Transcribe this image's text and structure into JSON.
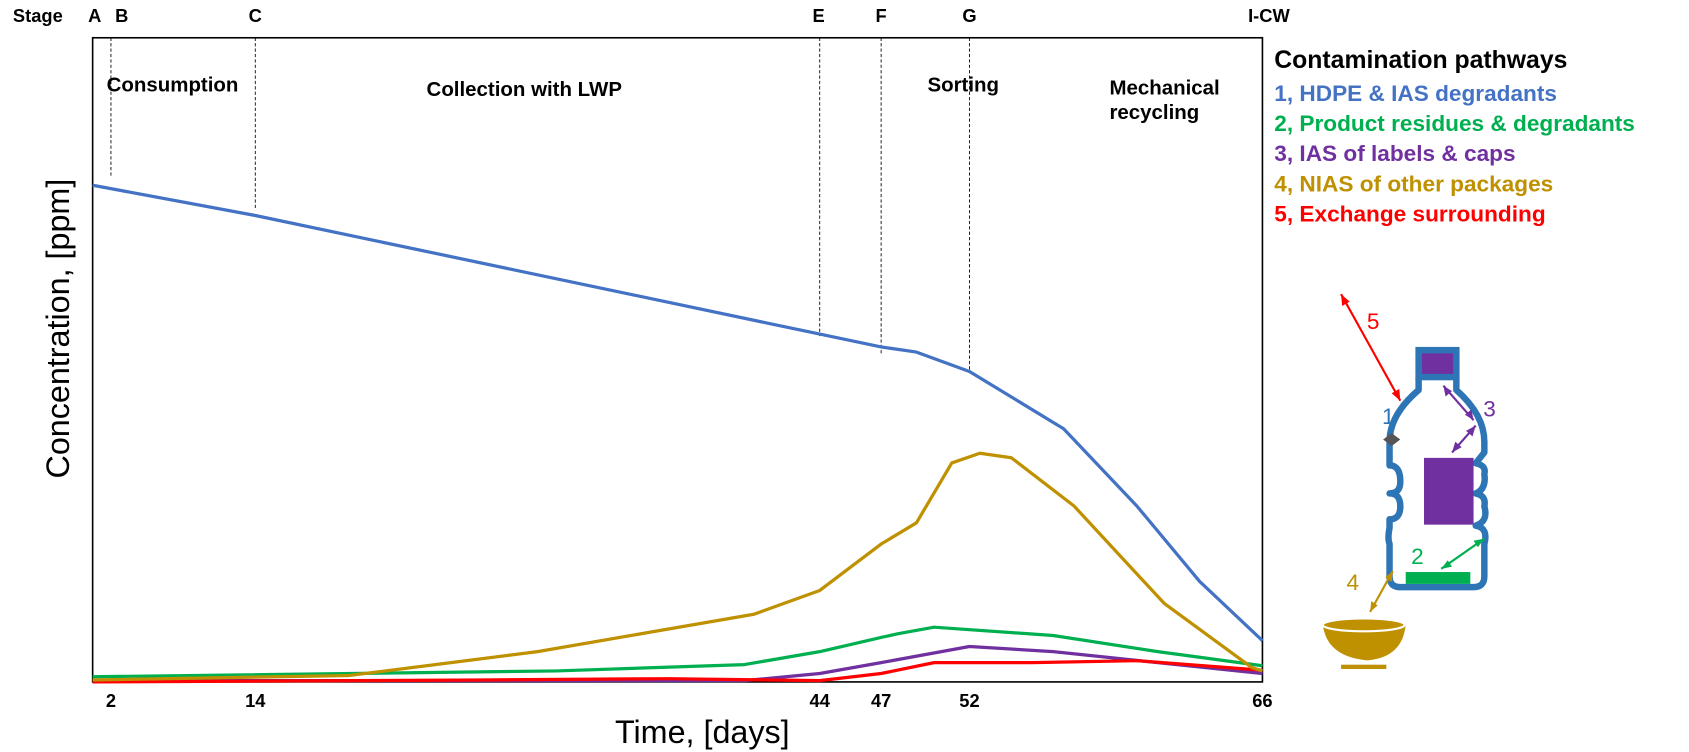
{
  "chart_data": {
    "type": "line",
    "stage_label": "Stage",
    "stages": [
      "A",
      "B",
      "C",
      "E",
      "F",
      "G",
      "I-CW"
    ],
    "phases": [
      "Consumption",
      "Collection with LWP",
      "Sorting",
      "Mechanical recycling"
    ],
    "x_label": "Time, [days]",
    "y_label": "Concentration, [ppm]",
    "xlim": [
      0,
      66
    ],
    "xticks": [
      2,
      14,
      44,
      47,
      52,
      66
    ],
    "ylim": [
      0,
      100
    ],
    "legend_title": "Contamination pathways",
    "series": [
      {
        "name": "1, HDPE & IAS degradants",
        "color": "#4472c4",
        "x": [
          0,
          14,
          44,
          47,
          49,
          52,
          56.5,
          60,
          63,
          66
        ],
        "values": [
          77.1,
          72.4,
          54,
          52,
          51.2,
          48.2,
          39.3,
          27.3,
          15.6,
          6.4
        ]
      },
      {
        "name": "2, Product residues & degradants",
        "color": "#00b050",
        "x": [
          0,
          30,
          40,
          44,
          47,
          48,
          50,
          56,
          61,
          66
        ],
        "values": [
          0.8,
          1.7,
          2.7,
          4.7,
          6.9,
          7.5,
          8.5,
          7.2,
          4.7,
          2.5
        ]
      },
      {
        "name": "3, IAS of labels & caps",
        "color": "#7030a0",
        "x": [
          0,
          40,
          44,
          47,
          52,
          56,
          61,
          66
        ],
        "values": [
          0.2,
          0.2,
          1.3,
          3.0,
          5.5,
          4.7,
          3.0,
          1.3
        ]
      },
      {
        "name": "4, NIAS of other packages",
        "color": "#bf9000",
        "x": [
          0,
          19,
          29,
          40.5,
          44,
          47,
          49,
          51,
          52.5,
          54,
          57,
          61.3,
          65.5,
          66
        ],
        "values": [
          0.3,
          1.0,
          4.7,
          10.5,
          14.2,
          21.4,
          24.7,
          34,
          35.5,
          34.8,
          27.3,
          12.2,
          2.2,
          1.7
        ]
      },
      {
        "name": "5, Exchange surrounding",
        "color": "#ff0000",
        "x": [
          0,
          26,
          36,
          44,
          47,
          50,
          55,
          60,
          66
        ],
        "values": [
          0,
          0.3,
          0.5,
          0.2,
          1.3,
          3.0,
          3.0,
          3.3,
          1.8
        ]
      }
    ],
    "diagram_labels": [
      "1",
      "2",
      "3",
      "4",
      "5"
    ]
  }
}
